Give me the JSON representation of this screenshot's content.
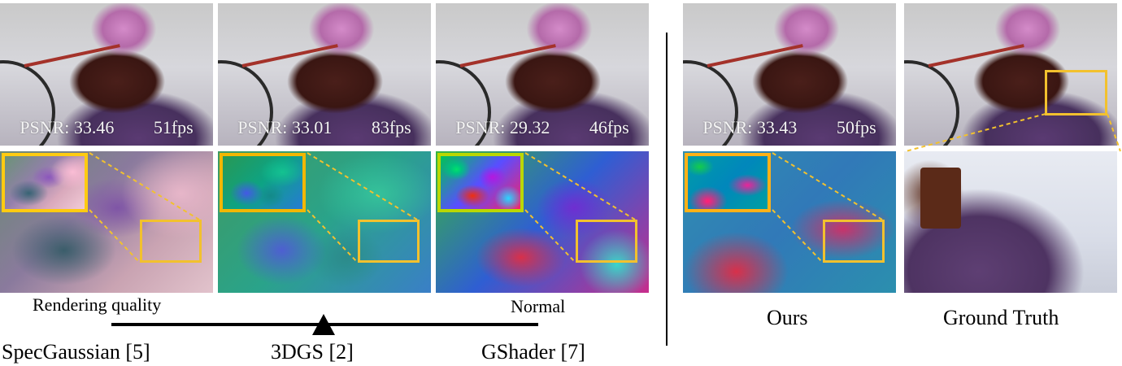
{
  "methods": [
    {
      "name": "SpecGaussian [5]",
      "psnr_label": "PSNR: 33.46",
      "fps_label": "51fps"
    },
    {
      "name": "3DGS [2]",
      "psnr_label": "PSNR: 33.01",
      "fps_label": "83fps"
    },
    {
      "name": "GShader [7]",
      "psnr_label": "PSNR: 29.32",
      "fps_label": "46fps"
    },
    {
      "name": "Ours",
      "psnr_label": "PSNR: 33.43",
      "fps_label": "50fps"
    }
  ],
  "ground_truth_label": "Ground Truth",
  "axis": {
    "left_label": "Rendering quality",
    "right_label": "Normal"
  },
  "colors": {
    "highlight": "#f2c12e",
    "axis": "#000000"
  }
}
